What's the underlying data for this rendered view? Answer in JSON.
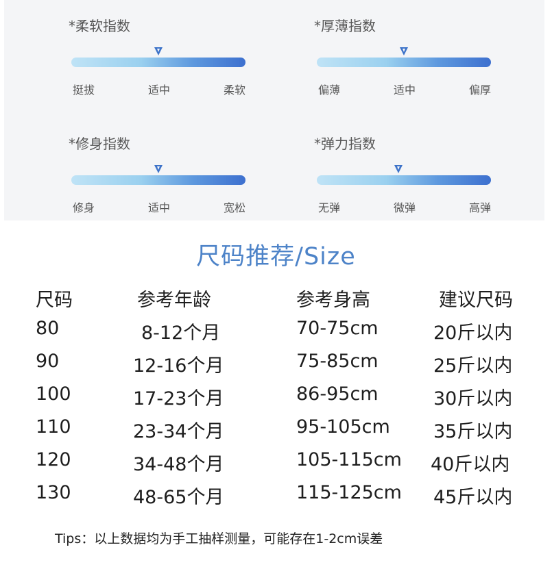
{
  "indices": [
    {
      "title": "*柔软指数",
      "labels": [
        "挺拔",
        "适中",
        "柔软"
      ],
      "level": 0.5
    },
    {
      "title": "*厚薄指数",
      "labels": [
        "偏薄",
        "适中",
        "偏厚"
      ],
      "level": 0.5
    },
    {
      "title": "*修身指数",
      "labels": [
        "修身",
        "适中",
        "宽松"
      ],
      "level": 0.5
    },
    {
      "title": "*弹力指数",
      "labels": [
        "无弹",
        "微弹",
        "高弹"
      ],
      "level": 0.47
    }
  ],
  "size_table": {
    "title": "尺码推荐/Size",
    "headers": [
      "尺码",
      "参考年龄",
      "参考身高",
      "建议尺码"
    ],
    "rows": [
      [
        "80",
        "8-12个月",
        "70-75cm",
        "20斤以内"
      ],
      [
        "90",
        "12-16个月",
        "75-85cm",
        "25斤以内"
      ],
      [
        "100",
        "17-23个月",
        "86-95cm",
        "30斤以内"
      ],
      [
        "110",
        "23-34个月",
        "95-105cm",
        "35斤以内"
      ],
      [
        "120",
        "34-48个月",
        "105-115cm",
        "40斤以内"
      ],
      [
        "130",
        "48-65个月",
        "115-125cm",
        "45斤以内"
      ]
    ]
  },
  "tips": "Tips：以上数据均为手工抽样测量，可能存在1-2cm误差",
  "colors": {
    "accent": "#4d83c8",
    "bar_start": "#bfe3f6",
    "bar_end": "#3d70cf"
  }
}
